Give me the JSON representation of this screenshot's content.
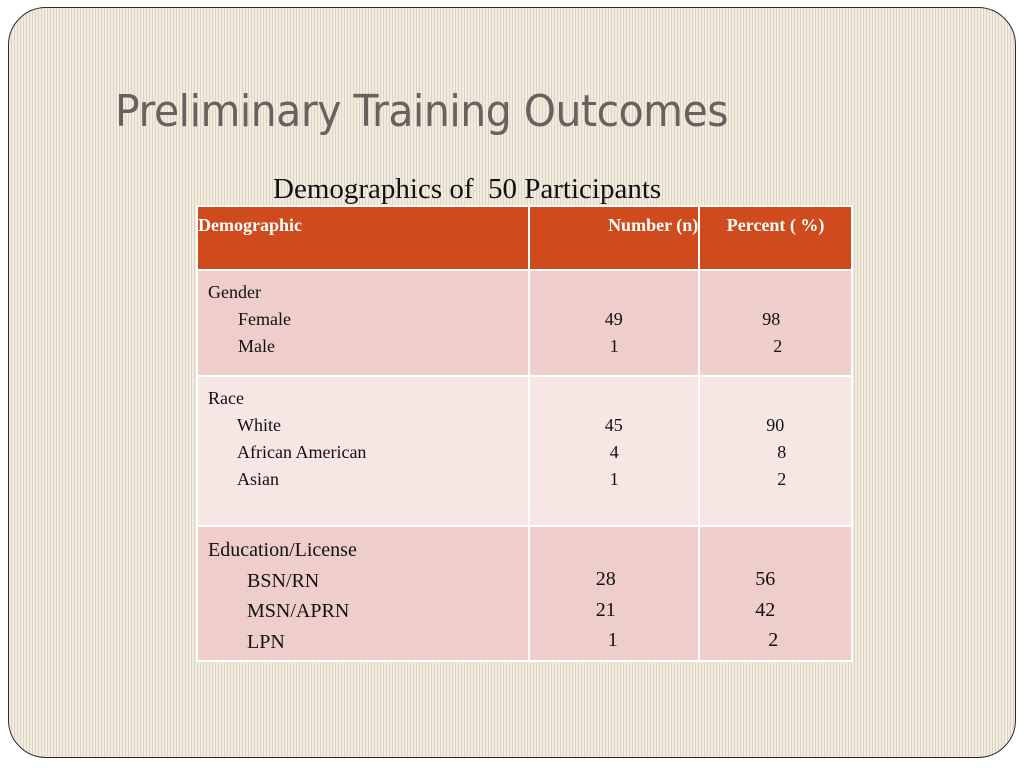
{
  "slide": {
    "title": "Preliminary Training Outcomes",
    "subtitle": "Demographics of  50 Participants"
  },
  "table": {
    "headers": {
      "demographic": "Demographic",
      "number": "Number (n)",
      "percent": "Percent ( %)"
    },
    "groups": [
      {
        "label": "Gender",
        "rows": [
          {
            "label": "Female",
            "n": "49",
            "pct": "98"
          },
          {
            "label": "Male",
            "n": "1",
            "pct": "2"
          }
        ]
      },
      {
        "label": "Race",
        "rows": [
          {
            "label": "White",
            "n": "45",
            "pct": "90"
          },
          {
            "label": "African American",
            "n": "4",
            "pct": "8"
          },
          {
            "label": "Asian",
            "n": "1",
            "pct": "2"
          }
        ]
      },
      {
        "label": "Education/License",
        "rows": [
          {
            "label": "BSN/RN",
            "n": "28",
            "pct": "56"
          },
          {
            "label": "MSN/APRN",
            "n": "21",
            "pct": "42"
          },
          {
            "label": "LPN",
            "n": "1",
            "pct": "2"
          }
        ]
      }
    ]
  },
  "colors": {
    "header_bg": "#cf4a1c",
    "row_dark": "#eecdca",
    "row_light": "#f6e7e5",
    "title_text": "#6a6060",
    "background": "#ebe6d6"
  }
}
